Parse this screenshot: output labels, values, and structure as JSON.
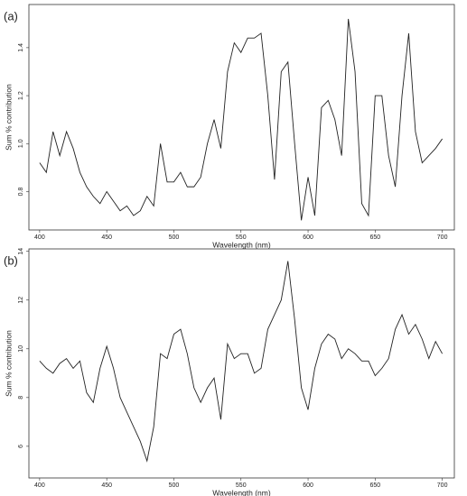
{
  "chart_data": [
    {
      "type": "line",
      "panel_label": "(a)",
      "xlabel": "Wavelength (nm)",
      "ylabel": "Sum % contribution",
      "color": "#222222",
      "x": [
        400,
        405,
        410,
        415,
        420,
        425,
        430,
        435,
        440,
        445,
        450,
        455,
        460,
        465,
        470,
        475,
        480,
        485,
        490,
        495,
        500,
        505,
        510,
        515,
        520,
        525,
        530,
        535,
        540,
        545,
        550,
        555,
        560,
        565,
        570,
        575,
        580,
        585,
        590,
        595,
        600,
        605,
        610,
        615,
        620,
        625,
        630,
        635,
        640,
        645,
        650,
        655,
        660,
        665,
        670,
        675,
        680,
        685,
        690,
        695,
        700
      ],
      "values": [
        0.92,
        0.88,
        1.05,
        0.95,
        1.05,
        0.98,
        0.88,
        0.82,
        0.78,
        0.75,
        0.8,
        0.76,
        0.72,
        0.74,
        0.7,
        0.72,
        0.78,
        0.74,
        1.0,
        0.84,
        0.84,
        0.88,
        0.82,
        0.82,
        0.86,
        1.0,
        1.1,
        0.98,
        1.3,
        1.42,
        1.38,
        1.44,
        1.44,
        1.46,
        1.2,
        0.85,
        1.3,
        1.34,
        1.0,
        0.68,
        0.86,
        0.7,
        1.15,
        1.18,
        1.1,
        0.95,
        1.52,
        1.3,
        0.75,
        0.7,
        1.2,
        1.2,
        0.95,
        0.82,
        1.2,
        1.46,
        1.05,
        0.92,
        0.95,
        0.98,
        1.02
      ],
      "xlim": [
        392,
        709
      ],
      "ylim": [
        0.64,
        1.58
      ],
      "xticks": [
        400,
        450,
        500,
        550,
        600,
        650,
        700
      ],
      "yticks": [
        0.8,
        {
          "value": 1,
          "label": "1.0"
        },
        1.2,
        1.4
      ]
    },
    {
      "type": "line",
      "panel_label": "(b)",
      "xlabel": "Wavelength (nm)",
      "ylabel": "Sum % contribution",
      "color": "#222222",
      "x": [
        400,
        405,
        410,
        415,
        420,
        425,
        430,
        435,
        440,
        445,
        450,
        455,
        460,
        465,
        470,
        475,
        480,
        485,
        490,
        495,
        500,
        505,
        510,
        515,
        520,
        525,
        530,
        535,
        540,
        545,
        550,
        555,
        560,
        565,
        570,
        575,
        580,
        585,
        590,
        595,
        600,
        605,
        610,
        615,
        620,
        625,
        630,
        635,
        640,
        645,
        650,
        655,
        660,
        665,
        670,
        675,
        680,
        685,
        690,
        695,
        700
      ],
      "values": [
        9.5,
        9.2,
        9.0,
        9.4,
        9.6,
        9.2,
        9.5,
        8.2,
        7.8,
        9.2,
        10.1,
        9.2,
        8.0,
        7.4,
        6.8,
        6.2,
        5.4,
        6.8,
        9.8,
        9.6,
        10.6,
        10.8,
        9.8,
        8.4,
        7.8,
        8.4,
        8.8,
        7.1,
        10.2,
        9.6,
        9.8,
        9.8,
        9.0,
        9.2,
        10.8,
        11.4,
        12.0,
        13.6,
        11.2,
        8.4,
        7.5,
        9.2,
        10.2,
        10.6,
        10.4,
        9.6,
        10.0,
        9.8,
        9.5,
        9.5,
        8.9,
        9.2,
        9.6,
        10.8,
        11.4,
        10.6,
        11.0,
        10.4,
        9.6,
        10.3,
        9.8
      ],
      "xlim": [
        392,
        709
      ],
      "ylim": [
        4.7,
        14.1
      ],
      "xticks": [
        400,
        450,
        500,
        550,
        600,
        650,
        700
      ],
      "yticks": [
        6,
        8,
        10,
        12,
        14
      ]
    }
  ]
}
